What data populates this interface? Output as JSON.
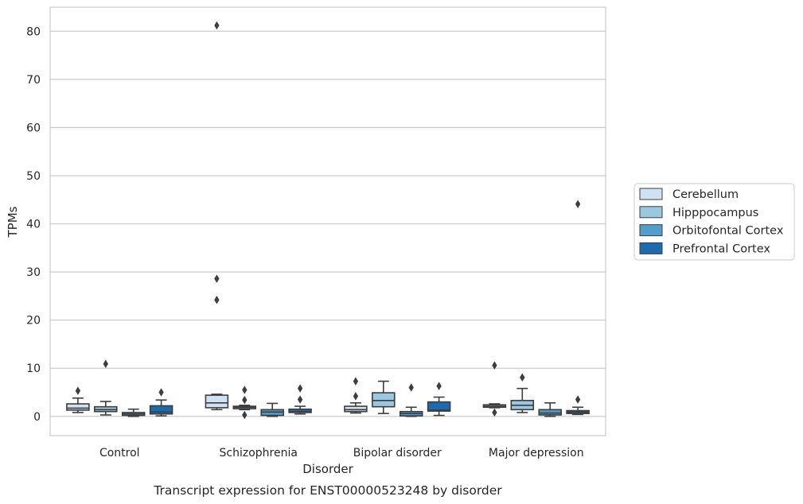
{
  "chart_data": {
    "type": "box",
    "caption": "Transcript expression for ENST00000523248 by disorder",
    "xlabel": "Disorder",
    "ylabel": "TPMs",
    "ylim": [
      -4,
      85
    ],
    "yticks": [
      0,
      10,
      20,
      30,
      40,
      50,
      60,
      70,
      80
    ],
    "grid": true,
    "legend_position": "right",
    "categories": [
      "Control",
      "Schizophrenia",
      "Bipolar disorder",
      "Major depression"
    ],
    "series": [
      {
        "name": "Cerebellum",
        "color": "#d0e2f2",
        "boxes": [
          {
            "whislo": 0.8,
            "q1": 1.3,
            "med": 1.7,
            "q3": 2.6,
            "whishi": 3.8,
            "fliers": [
              5.3
            ]
          },
          {
            "whislo": 1.4,
            "q1": 1.8,
            "med": 2.8,
            "q3": 4.4,
            "whishi": 4.6,
            "fliers": [
              24.2,
              28.6,
              81.2
            ]
          },
          {
            "whislo": 0.7,
            "q1": 1.0,
            "med": 1.4,
            "q3": 2.1,
            "whishi": 2.8,
            "fliers": [
              4.2,
              7.3
            ]
          },
          {
            "whislo": 1.8,
            "q1": 1.9,
            "med": 2.1,
            "q3": 2.4,
            "whishi": 2.6,
            "fliers": [
              0.8,
              10.6
            ]
          }
        ]
      },
      {
        "name": "Hipppocampus",
        "color": "#9ac8e0",
        "boxes": [
          {
            "whislo": 0.3,
            "q1": 1.0,
            "med": 1.4,
            "q3": 2.0,
            "whishi": 3.1,
            "fliers": [
              10.9
            ]
          },
          {
            "whislo": 1.4,
            "q1": 1.6,
            "med": 1.9,
            "q3": 2.1,
            "whishi": 2.3,
            "fliers": [
              0.3,
              3.4,
              5.5
            ]
          },
          {
            "whislo": 0.6,
            "q1": 2.0,
            "med": 3.3,
            "q3": 4.9,
            "whishi": 7.3,
            "fliers": []
          },
          {
            "whislo": 0.8,
            "q1": 1.4,
            "med": 2.3,
            "q3": 3.3,
            "whishi": 5.8,
            "fliers": [
              8.1
            ]
          }
        ]
      },
      {
        "name": "Orbitofontal Cortex",
        "color": "#529dcc",
        "boxes": [
          {
            "whislo": 0.0,
            "q1": 0.2,
            "med": 0.5,
            "q3": 0.8,
            "whishi": 1.5,
            "fliers": []
          },
          {
            "whislo": 0.0,
            "q1": 0.2,
            "med": 0.9,
            "q3": 1.4,
            "whishi": 2.7,
            "fliers": []
          },
          {
            "whislo": 0.0,
            "q1": 0.1,
            "med": 0.6,
            "q3": 1.0,
            "whishi": 1.9,
            "fliers": [
              6.0
            ]
          },
          {
            "whislo": 0.0,
            "q1": 0.3,
            "med": 0.7,
            "q3": 1.4,
            "whishi": 2.8,
            "fliers": []
          }
        ]
      },
      {
        "name": "Prefrontal Cortex",
        "color": "#1c6aaf",
        "boxes": [
          {
            "whislo": 0.1,
            "q1": 0.5,
            "med": 0.9,
            "q3": 2.2,
            "whishi": 3.4,
            "fliers": [
              5.0
            ]
          },
          {
            "whislo": 0.5,
            "q1": 0.8,
            "med": 1.0,
            "q3": 1.5,
            "whishi": 2.1,
            "fliers": [
              3.5,
              5.8
            ]
          },
          {
            "whislo": 0.2,
            "q1": 1.1,
            "med": 1.3,
            "q3": 3.0,
            "whishi": 4.0,
            "fliers": [
              6.3
            ]
          },
          {
            "whislo": 0.4,
            "q1": 0.6,
            "med": 0.9,
            "q3": 1.2,
            "whishi": 1.9,
            "fliers": [
              3.5,
              44.1
            ]
          }
        ]
      }
    ]
  }
}
